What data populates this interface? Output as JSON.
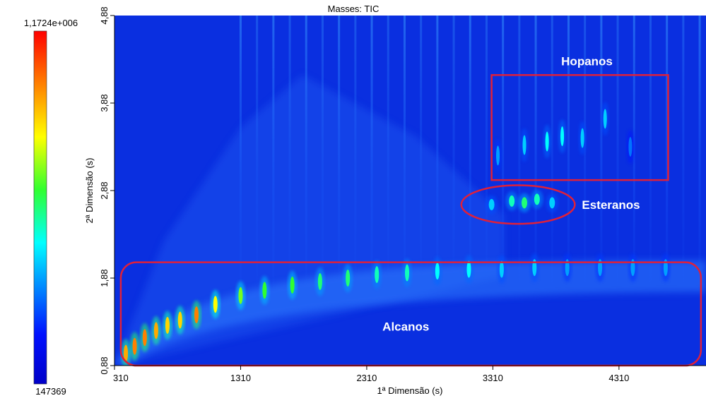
{
  "chart_data": {
    "type": "heatmap",
    "title": "Masses: TIC",
    "xlabel": "1ª Dimensão (s)",
    "ylabel": "2ª Dimensão (s)",
    "xlim": [
      310,
      5000
    ],
    "ylim": [
      0.88,
      4.88
    ],
    "x_ticks": [
      "310",
      "1310",
      "2310",
      "3310",
      "4310"
    ],
    "x_tick_values": [
      310,
      1310,
      2310,
      3310,
      4310
    ],
    "y_ticks": [
      "0,88",
      "1,88",
      "2,88",
      "3,88",
      "4,88"
    ],
    "y_tick_values": [
      0.88,
      1.88,
      2.88,
      3.88,
      4.88
    ],
    "colorbar": {
      "max_label": "1,1724e+006",
      "min_label": "147369",
      "max_value": 1172400,
      "min_value": 147369,
      "colormap": "jet"
    },
    "background_color": "#0a2fe0",
    "highlight_color": "#e0203a",
    "regions": [
      {
        "label": "Hopanos",
        "shape": "rect",
        "x_range": [
          3300,
          4700
        ],
        "y_range": [
          3.0,
          4.2
        ]
      },
      {
        "label": "Esteranos",
        "shape": "ellipse",
        "x_range": [
          3060,
          3960
        ],
        "y_range": [
          2.5,
          2.94
        ]
      },
      {
        "label": "Alcanos",
        "shape": "rect",
        "x_range": [
          360,
          4960
        ],
        "y_range": [
          0.88,
          2.06
        ]
      }
    ],
    "alkane_peaks": [
      {
        "x": 400,
        "y": 1.02,
        "level": 0.8
      },
      {
        "x": 470,
        "y": 1.1,
        "level": 0.85
      },
      {
        "x": 550,
        "y": 1.2,
        "level": 0.85
      },
      {
        "x": 640,
        "y": 1.28,
        "level": 0.8
      },
      {
        "x": 730,
        "y": 1.34,
        "level": 0.75
      },
      {
        "x": 830,
        "y": 1.4,
        "level": 0.75
      },
      {
        "x": 960,
        "y": 1.46,
        "level": 0.85
      },
      {
        "x": 1110,
        "y": 1.58,
        "level": 0.7
      },
      {
        "x": 1310,
        "y": 1.68,
        "level": 0.6
      },
      {
        "x": 1500,
        "y": 1.74,
        "level": 0.55
      },
      {
        "x": 1720,
        "y": 1.8,
        "level": 0.55
      },
      {
        "x": 1940,
        "y": 1.84,
        "level": 0.5
      },
      {
        "x": 2160,
        "y": 1.88,
        "level": 0.5
      },
      {
        "x": 2390,
        "y": 1.92,
        "level": 0.45
      },
      {
        "x": 2630,
        "y": 1.94,
        "level": 0.45
      },
      {
        "x": 2870,
        "y": 1.96,
        "level": 0.4
      },
      {
        "x": 3120,
        "y": 1.98,
        "level": 0.4
      },
      {
        "x": 3380,
        "y": 1.98,
        "level": 0.35
      },
      {
        "x": 3640,
        "y": 2.0,
        "level": 0.35
      },
      {
        "x": 3900,
        "y": 2.0,
        "level": 0.3
      },
      {
        "x": 4160,
        "y": 2.0,
        "level": 0.3
      },
      {
        "x": 4420,
        "y": 2.0,
        "level": 0.3
      },
      {
        "x": 4680,
        "y": 2.0,
        "level": 0.3
      }
    ],
    "sterane_peaks": [
      {
        "x": 3300,
        "y": 2.72,
        "level": 0.35
      },
      {
        "x": 3460,
        "y": 2.76,
        "level": 0.45
      },
      {
        "x": 3560,
        "y": 2.74,
        "level": 0.5
      },
      {
        "x": 3660,
        "y": 2.78,
        "level": 0.45
      },
      {
        "x": 3780,
        "y": 2.74,
        "level": 0.35
      }
    ],
    "hopane_peaks": [
      {
        "x": 3350,
        "y": 3.28,
        "level": 0.3
      },
      {
        "x": 3560,
        "y": 3.4,
        "level": 0.35
      },
      {
        "x": 3740,
        "y": 3.44,
        "level": 0.4
      },
      {
        "x": 3860,
        "y": 3.5,
        "level": 0.4
      },
      {
        "x": 4020,
        "y": 3.48,
        "level": 0.35
      },
      {
        "x": 4200,
        "y": 3.7,
        "level": 0.35
      },
      {
        "x": 4400,
        "y": 3.38,
        "level": 0.25
      }
    ]
  }
}
